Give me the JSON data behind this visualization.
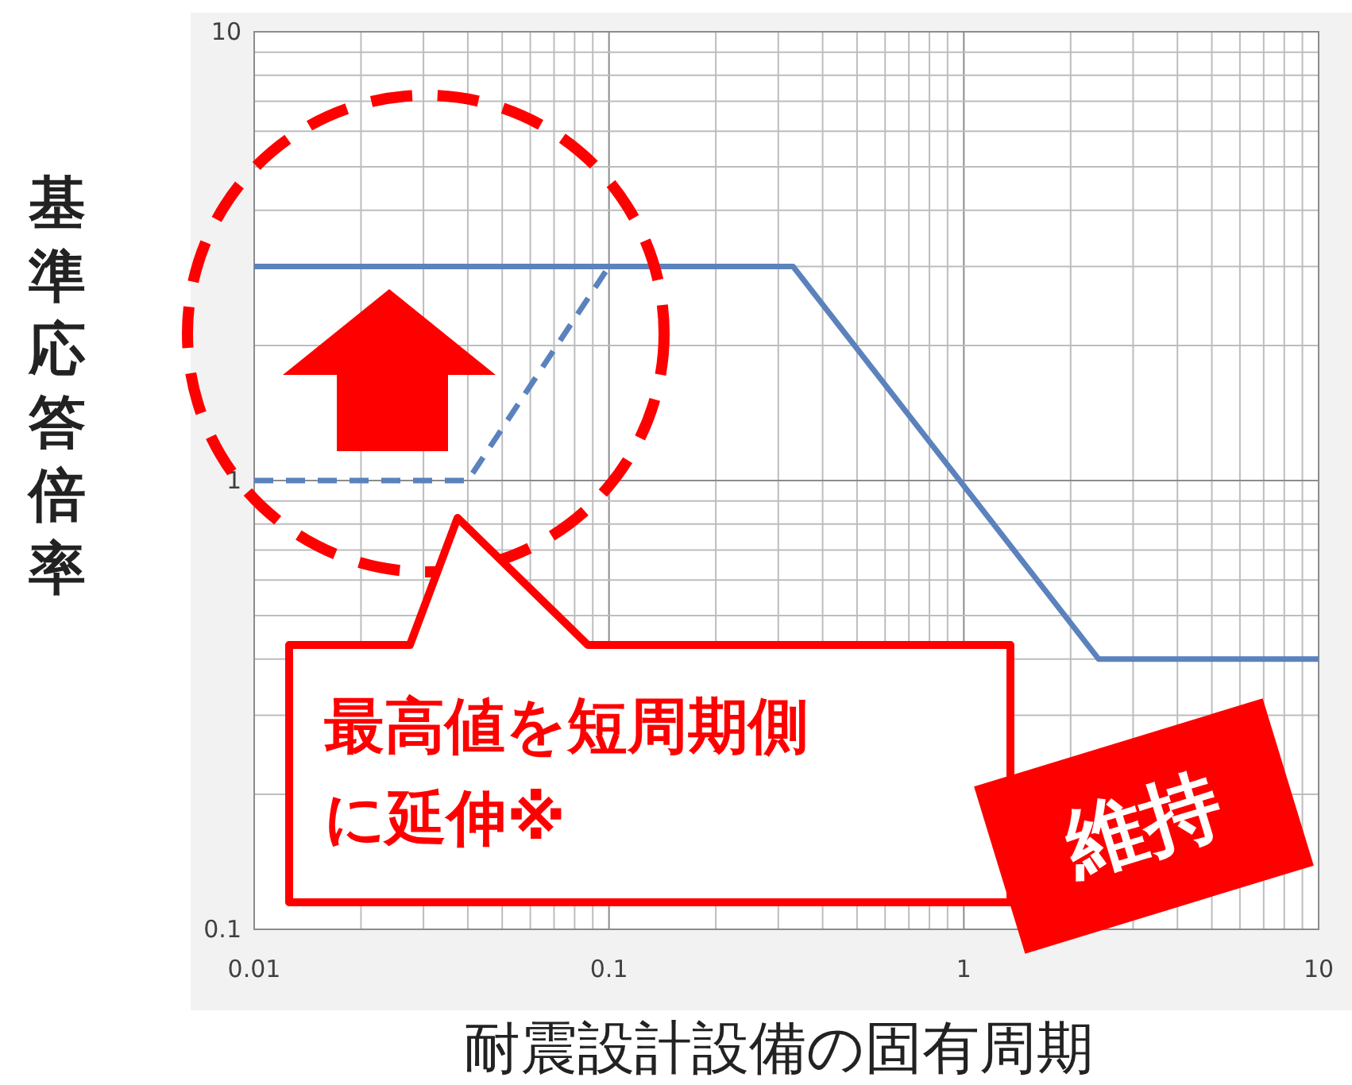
{
  "chart_data": {
    "type": "line",
    "xlabel": "耐震設計設備の固有周期",
    "ylabel": "基準応答倍率",
    "log": "xy",
    "grid": true,
    "xlim": [
      0.01,
      10
    ],
    "ylim": [
      0.1,
      10
    ],
    "xticks": [
      0.01,
      {
        "value": 0.02,
        "label": null
      },
      {
        "value": 0.03,
        "label": null
      },
      {
        "value": 0.04,
        "label": null
      },
      {
        "value": 0.05,
        "label": null
      },
      {
        "value": 0.06,
        "label": null
      },
      {
        "value": 0.07,
        "label": null
      },
      {
        "value": 0.08,
        "label": null
      },
      {
        "value": 0.09,
        "label": null
      },
      0.1,
      {
        "value": 0.2,
        "label": null
      },
      {
        "value": 0.3,
        "label": null
      },
      {
        "value": 0.4,
        "label": null
      },
      {
        "value": 0.5,
        "label": null
      },
      {
        "value": 0.6,
        "label": null
      },
      {
        "value": 0.7,
        "label": null
      },
      {
        "value": 0.8,
        "label": null
      },
      {
        "value": 0.9,
        "label": null
      },
      1,
      {
        "value": 2,
        "label": null
      },
      {
        "value": 3,
        "label": null
      },
      {
        "value": 4,
        "label": null
      },
      {
        "value": 5,
        "label": null
      },
      {
        "value": 6,
        "label": null
      },
      {
        "value": 7,
        "label": null
      },
      {
        "value": 8,
        "label": null
      },
      {
        "value": 9,
        "label": null
      },
      10
    ],
    "yticks": [
      0.1,
      {
        "value": 0.2,
        "label": null
      },
      {
        "value": 0.3,
        "label": null
      },
      {
        "value": 0.4,
        "label": null
      },
      {
        "value": 0.5,
        "label": null
      },
      {
        "value": 0.6,
        "label": null
      },
      {
        "value": 0.7,
        "label": null
      },
      {
        "value": 0.8,
        "label": null
      },
      {
        "value": 0.9,
        "label": null
      },
      1,
      {
        "value": 2,
        "label": null
      },
      {
        "value": 3,
        "label": null
      },
      {
        "value": 4,
        "label": null
      },
      {
        "value": 5,
        "label": null
      },
      {
        "value": 6,
        "label": null
      },
      {
        "value": 7,
        "label": null
      },
      {
        "value": 8,
        "label": null
      },
      {
        "value": 9,
        "label": null
      },
      10
    ],
    "series": [
      {
        "color": "#5b82bd",
        "line_style": "solid",
        "x": [
          0.01,
          0.33,
          2.4,
          10
        ],
        "values": [
          3,
          3,
          0.4,
          0.4
        ]
      },
      {
        "color": "#5b82bd",
        "line_style": "dashed",
        "x": [
          0.01,
          0.04,
          0.1
        ],
        "values": [
          1,
          1,
          3
        ]
      }
    ],
    "annotations": [
      "最高値を短周期側に延伸※",
      "維持"
    ]
  }
}
